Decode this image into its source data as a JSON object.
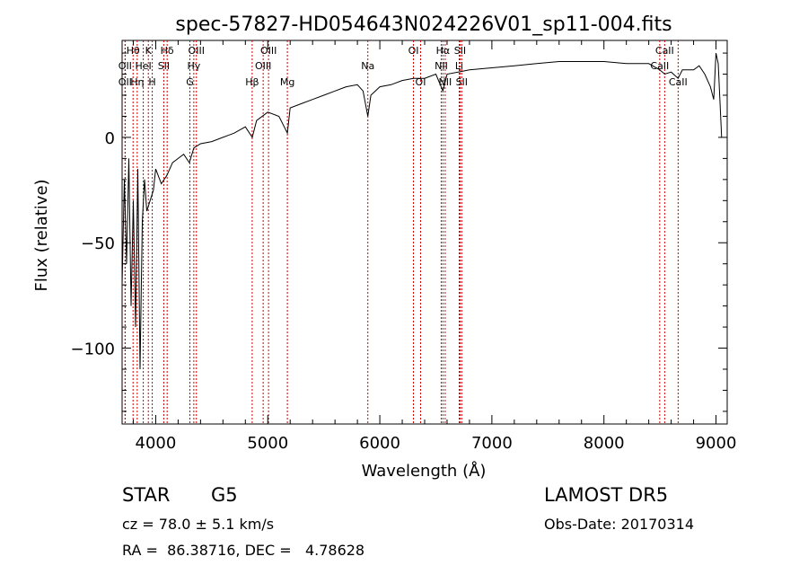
{
  "chart_data": {
    "type": "line",
    "title": "spec-57827-HD054643N024226V01_sp11-004.fits",
    "xlabel": "Wavelength (Å)",
    "ylabel": "Flux (relative)",
    "xlim": [
      3700,
      9100
    ],
    "ylim": [
      -136,
      46
    ],
    "xticks": [
      4000,
      5000,
      6000,
      7000,
      8000,
      9000
    ],
    "xtick_labels": [
      "4000",
      "5000",
      "6000",
      "7000",
      "8000",
      "9000"
    ],
    "yticks": [
      0,
      -50,
      -100
    ],
    "ytick_labels": [
      "0",
      "−50",
      "−100"
    ],
    "line_color": "#000000",
    "marker_color": "#cc0000",
    "grid": false,
    "series": [
      {
        "x": [
          3700,
          3720,
          3740,
          3760,
          3780,
          3800,
          3820,
          3840,
          3860,
          3880,
          3900,
          3920,
          3950,
          3980,
          4000,
          4050,
          4100,
          4150,
          4200,
          4250,
          4300,
          4340,
          4400,
          4500,
          4600,
          4700,
          4800,
          4862,
          4900,
          5000,
          5100,
          5175,
          5200,
          5300,
          5400,
          5500,
          5600,
          5700,
          5800,
          5850,
          5893,
          5920,
          6000,
          6100,
          6200,
          6300,
          6400,
          6500,
          6563,
          6600,
          6700,
          6800,
          7000,
          7200,
          7400,
          7600,
          7800,
          8000,
          8200,
          8400,
          8498,
          8542,
          8600,
          8662,
          8700,
          8800,
          8850,
          8900,
          8950,
          8980,
          9000,
          9020,
          9050
        ],
        "y": [
          -70,
          -20,
          -60,
          -10,
          -80,
          -30,
          -90,
          -15,
          -110,
          -40,
          -20,
          -35,
          -30,
          -25,
          -15,
          -22,
          -18,
          -12,
          -10,
          -8,
          -12,
          -5,
          -3,
          -2,
          0,
          2,
          5,
          0,
          8,
          12,
          10,
          2,
          14,
          16,
          18,
          20,
          22,
          24,
          25,
          22,
          10,
          20,
          24,
          25,
          27,
          28,
          28,
          30,
          22,
          30,
          31,
          32,
          33,
          34,
          35,
          36,
          36,
          36,
          35,
          35,
          32,
          30,
          31,
          28,
          32,
          32,
          34,
          30,
          24,
          18,
          40,
          35,
          0
        ]
      }
    ],
    "line_markers": [
      {
        "label": "OII",
        "x": 3727,
        "row": 2
      },
      {
        "label": "Hθ",
        "x": 3798,
        "row": 1
      },
      {
        "label": "OII",
        "x": 3727,
        "row": 3
      },
      {
        "label": "Hη",
        "x": 3835,
        "row": 3
      },
      {
        "label": "HeI",
        "x": 3889,
        "row": 2
      },
      {
        "label": "K",
        "x": 3934,
        "row": 1
      },
      {
        "label": "H",
        "x": 3969,
        "row": 3
      },
      {
        "label": "SII",
        "x": 4072,
        "row": 2
      },
      {
        "label": "Hδ",
        "x": 4102,
        "row": 1
      },
      {
        "label": "G",
        "x": 4305,
        "row": 3
      },
      {
        "label": "Hγ",
        "x": 4340,
        "row": 2
      },
      {
        "label": "OIII",
        "x": 4363,
        "row": 1
      },
      {
        "label": "Hβ",
        "x": 4861,
        "row": 3
      },
      {
        "label": "OIII",
        "x": 4959,
        "row": 2
      },
      {
        "label": "OIII",
        "x": 5007,
        "row": 1
      },
      {
        "label": "Mg",
        "x": 5175,
        "row": 3
      },
      {
        "label": "Na",
        "x": 5893,
        "row": 2
      },
      {
        "label": "OI",
        "x": 6300,
        "row": 1
      },
      {
        "label": "OI",
        "x": 6364,
        "row": 3
      },
      {
        "label": "NII",
        "x": 6548,
        "row": 2
      },
      {
        "label": "Hα",
        "x": 6563,
        "row": 1
      },
      {
        "label": "NII",
        "x": 6583,
        "row": 3
      },
      {
        "label": "Li",
        "x": 6708,
        "row": 2
      },
      {
        "label": "SII",
        "x": 6716,
        "row": 1
      },
      {
        "label": "SII",
        "x": 6731,
        "row": 3
      },
      {
        "label": "CaII",
        "x": 8498,
        "row": 2
      },
      {
        "label": "CaII",
        "x": 8542,
        "row": 1
      },
      {
        "label": "CaII",
        "x": 8662,
        "row": 3
      }
    ]
  },
  "footer": {
    "object_class": "STAR",
    "subclass": "G5",
    "survey": "LAMOST DR5",
    "cz": "cz = 78.0 ± 5.1 km/s",
    "obs_date": "Obs-Date: 20170314",
    "coords": "RA =  86.38716, DEC =   4.78628"
  }
}
